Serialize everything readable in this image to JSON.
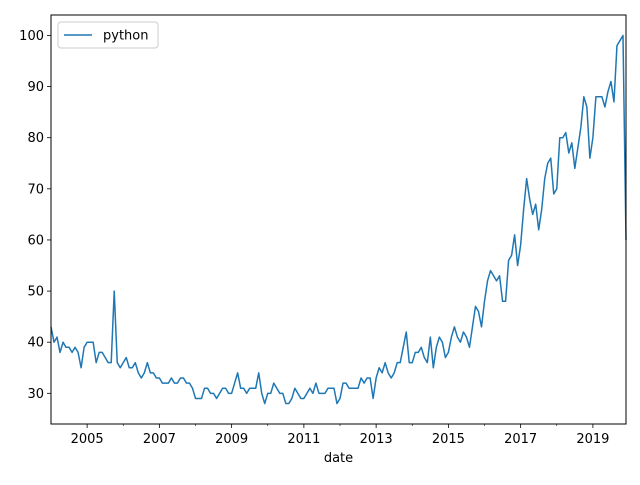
{
  "chart_data": {
    "type": "line",
    "title": "",
    "xlabel": "date",
    "ylabel": "",
    "x_start": "2004-01",
    "x_end": "2019-12",
    "xlim": [
      "2004-01",
      "2019-12"
    ],
    "ylim": [
      24,
      104
    ],
    "x_ticks": [
      "2005",
      "2007",
      "2009",
      "2011",
      "2013",
      "2015",
      "2017",
      "2019"
    ],
    "y_ticks": [
      "30",
      "40",
      "50",
      "60",
      "70",
      "80",
      "90",
      "100"
    ],
    "legend": {
      "position": "top-left",
      "entries": [
        "python"
      ]
    },
    "grid": false,
    "series": [
      {
        "name": "python",
        "color": "#1f77b4",
        "values": [
          43,
          40,
          41,
          38,
          40,
          39,
          39,
          38,
          39,
          38,
          35,
          39,
          40,
          40,
          40,
          36,
          38,
          38,
          37,
          36,
          36,
          50,
          36,
          35,
          36,
          37,
          35,
          35,
          36,
          34,
          33,
          34,
          36,
          34,
          34,
          33,
          33,
          32,
          32,
          32,
          33,
          32,
          32,
          33,
          33,
          32,
          32,
          31,
          29,
          29,
          29,
          31,
          31,
          30,
          30,
          29,
          30,
          31,
          31,
          30,
          30,
          32,
          34,
          31,
          31,
          30,
          31,
          31,
          31,
          34,
          30,
          28,
          30,
          30,
          32,
          31,
          30,
          30,
          28,
          28,
          29,
          31,
          30,
          29,
          29,
          30,
          31,
          30,
          32,
          30,
          30,
          30,
          31,
          31,
          31,
          28,
          29,
          32,
          32,
          31,
          31,
          31,
          31,
          33,
          32,
          33,
          33,
          29,
          33,
          35,
          34,
          36,
          34,
          33,
          34,
          36,
          36,
          39,
          42,
          36,
          36,
          38,
          38,
          39,
          37,
          36,
          41,
          35,
          39,
          41,
          40,
          37,
          38,
          41,
          43,
          41,
          40,
          42,
          41,
          39,
          43,
          47,
          46,
          43,
          48,
          52,
          54,
          53,
          52,
          53,
          48,
          48,
          56,
          57,
          61,
          55,
          59,
          66,
          72,
          68,
          65,
          67,
          62,
          66,
          72,
          75,
          76,
          69,
          70,
          80,
          80,
          81,
          77,
          79,
          74,
          78,
          82,
          88,
          86,
          76,
          80,
          88,
          88,
          88,
          86,
          89,
          91,
          87,
          98,
          99,
          100,
          60
        ]
      }
    ]
  }
}
